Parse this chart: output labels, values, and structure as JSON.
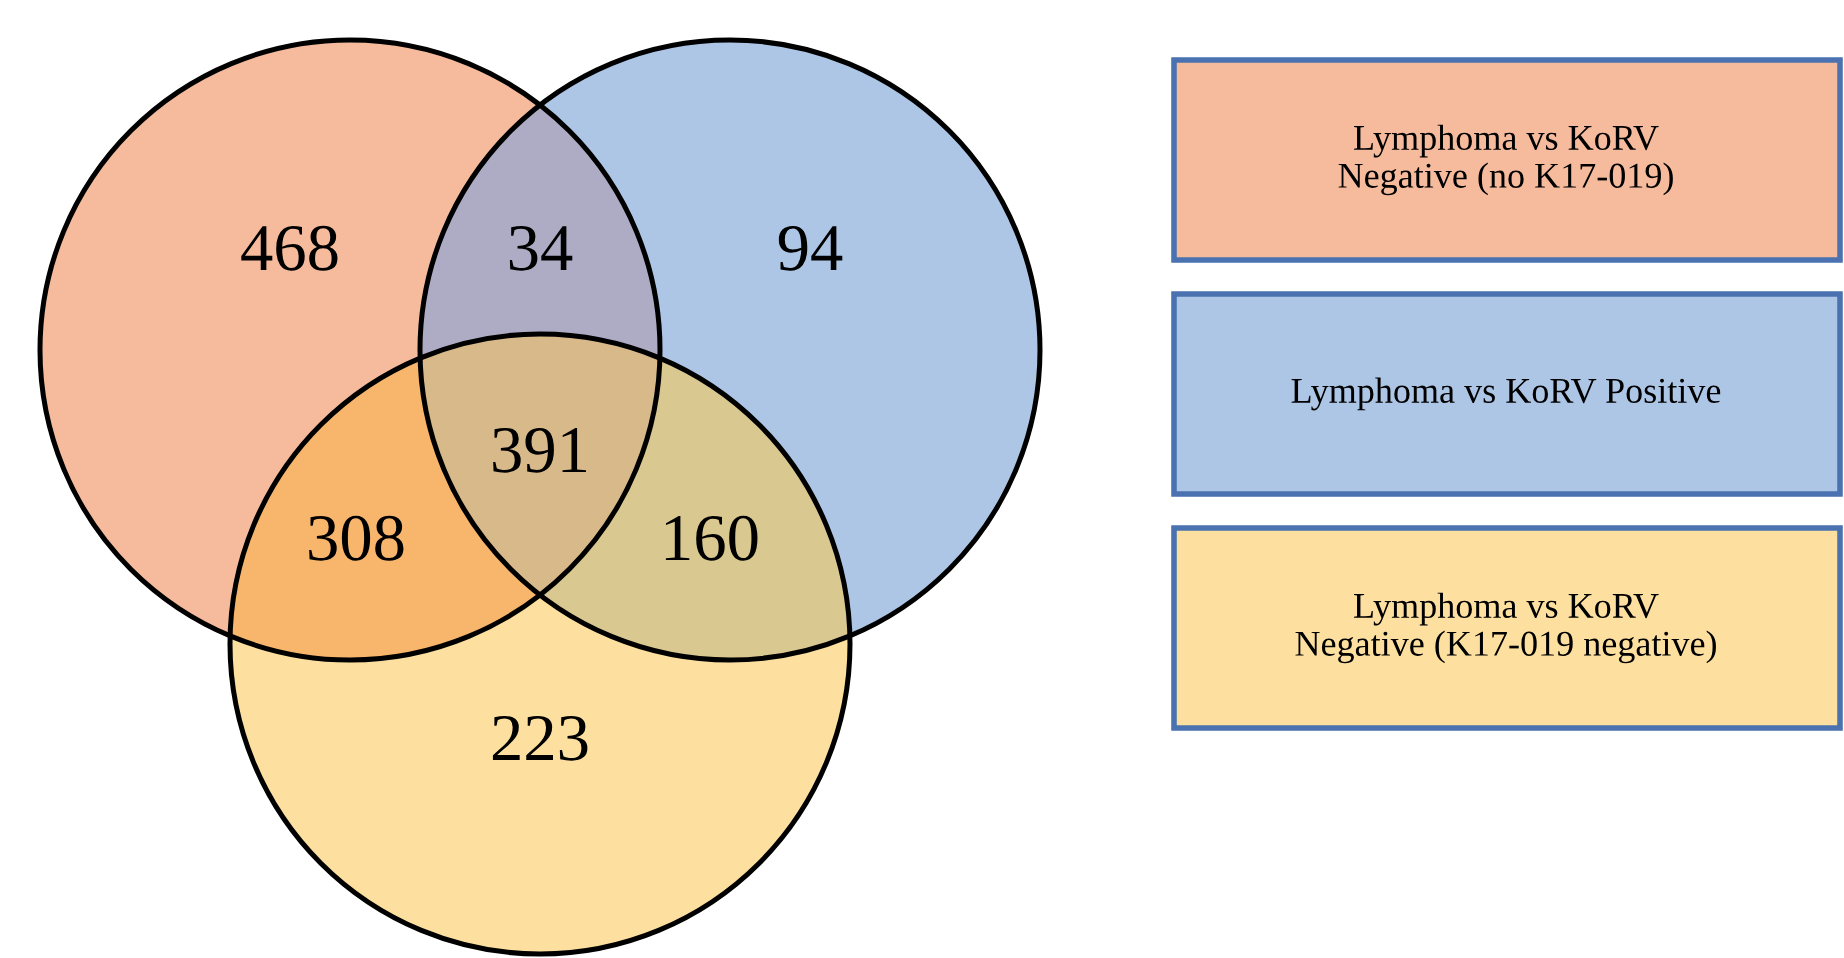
{
  "chart_data": {
    "type": "other",
    "categories": [
      null,
      null,
      null,
      null,
      null,
      null,
      null
    ],
    "values": [
      468,
      34,
      94,
      391,
      308,
      160,
      223
    ],
    "colors": [
      "#f5bb9c",
      "#aeabc4",
      "#adc6e6",
      "#d8b98a",
      "#f8b66c",
      "#dac891",
      "#fde09f"
    ],
    "data_labels": true,
    "annotations": [
      "Lymphoma vs KoRV\nNegative (no K17-019)",
      "Lymphoma vs KoRV Positive",
      "Lymphoma vs KoRV\nNegative (K17-019 negative)"
    ]
  }
}
